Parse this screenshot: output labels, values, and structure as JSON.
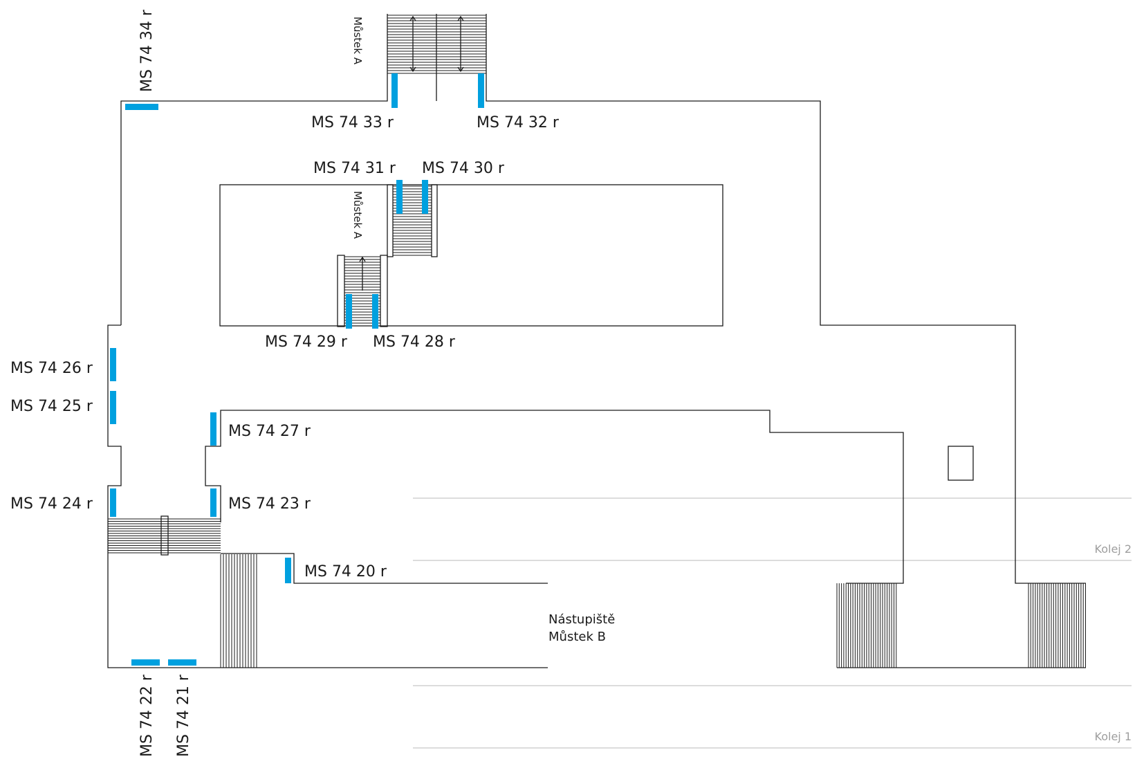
{
  "plan": {
    "markers": [
      {
        "id": "34",
        "label": "MS 74 34 r"
      },
      {
        "id": "33",
        "label": "MS 74 33 r"
      },
      {
        "id": "32",
        "label": "MS 74 32 r"
      },
      {
        "id": "31",
        "label": "MS 74 31 r"
      },
      {
        "id": "30",
        "label": "MS 74 30 r"
      },
      {
        "id": "29",
        "label": "MS 74 29 r"
      },
      {
        "id": "28",
        "label": "MS 74 28 r"
      },
      {
        "id": "27",
        "label": "MS 74 27 r"
      },
      {
        "id": "26",
        "label": "MS 74 26 r"
      },
      {
        "id": "25",
        "label": "MS 74 25 r"
      },
      {
        "id": "24",
        "label": "MS 74 24 r"
      },
      {
        "id": "23",
        "label": "MS 74 23 r"
      },
      {
        "id": "22",
        "label": "MS 74 22 r"
      },
      {
        "id": "21",
        "label": "MS 74 21 r"
      },
      {
        "id": "20",
        "label": "MS 74 20 r"
      }
    ],
    "stair_labels": {
      "upper": "Můstek A",
      "middle": "Můstek A"
    },
    "platform": {
      "line1": "Nástupiště",
      "line2": "Můstek B"
    },
    "tracks": {
      "track2": "Kolej 2",
      "track1": "Kolej 1"
    },
    "colors": {
      "marker": "#00a0df",
      "wall": "#1a1a1a",
      "track": "#c8c8c8",
      "track_label": "#9e9e9e"
    }
  }
}
